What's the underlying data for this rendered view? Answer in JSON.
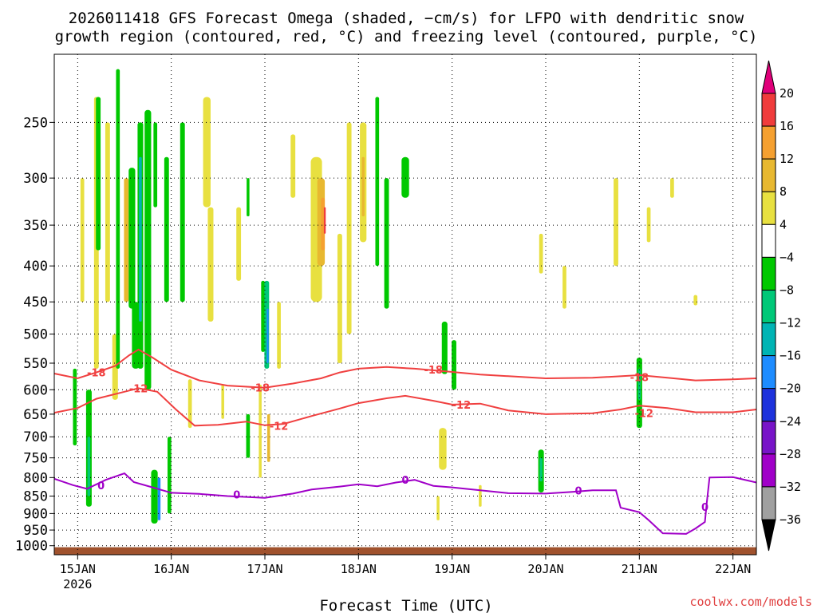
{
  "chart_data": {
    "type": "heatmap",
    "title": "2026011418 GFS Forecast Omega (shaded, −cm/s) for LFPO with dendritic snow growth region (contoured, red, °C) and freezing level (contoured, purple, °C)",
    "title_lines": [
      "2026011418 GFS Forecast Omega (shaded, −cm/s) for LFPO with dendritic snow",
      "growth region (contoured, red, °C) and freezing level (contoured, purple, °C)"
    ],
    "xlabel": "Forecast Time (UTC)",
    "ylabel": "",
    "credit": "coolwx.com/models",
    "x_range_days": [
      14.75,
      22.25
    ],
    "x_ticks": [
      {
        "day": 15,
        "label": "15JAN",
        "sub": "2026"
      },
      {
        "day": 16,
        "label": "16JAN",
        "sub": ""
      },
      {
        "day": 17,
        "label": "17JAN",
        "sub": ""
      },
      {
        "day": 18,
        "label": "18JAN",
        "sub": ""
      },
      {
        "day": 19,
        "label": "19JAN",
        "sub": ""
      },
      {
        "day": 20,
        "label": "20JAN",
        "sub": ""
      },
      {
        "day": 21,
        "label": "21JAN",
        "sub": ""
      },
      {
        "day": 22,
        "label": "22JAN",
        "sub": ""
      }
    ],
    "y_axis": "pressure (hPa), inverted log",
    "y_range": [
      200,
      1030
    ],
    "y_ticks": [
      {
        "p": 250,
        "label": "250"
      },
      {
        "p": 300,
        "label": "300"
      },
      {
        "p": 350,
        "label": "350"
      },
      {
        "p": 400,
        "label": "400"
      },
      {
        "p": 450,
        "label": "450"
      },
      {
        "p": 500,
        "label": "500"
      },
      {
        "p": 550,
        "label": "550"
      },
      {
        "p": 600,
        "label": "600"
      },
      {
        "p": 650,
        "label": "650"
      },
      {
        "p": 700,
        "label": "700"
      },
      {
        "p": 750,
        "label": "750"
      },
      {
        "p": 800,
        "label": "800"
      },
      {
        "p": 850,
        "label": "850"
      },
      {
        "p": 900,
        "label": "900"
      },
      {
        "p": 950,
        "label": "950"
      },
      {
        "p": 1000,
        "label": "1000"
      }
    ],
    "grid": true,
    "ground_color": "#a0522d",
    "ground_top_hpa": 1005,
    "colorbar": {
      "labels": [
        "20",
        "16",
        "12",
        "8",
        "4",
        "−4",
        "−8",
        "−12",
        "−16",
        "−20",
        "−24",
        "−28",
        "−32",
        "−36"
      ],
      "top_arrow_color": "#e0007a",
      "bottom_arrow_color": "#000000",
      "bands": [
        {
          "from": 16,
          "to": 20,
          "color": "#f03c3c"
        },
        {
          "from": 12,
          "to": 16,
          "color": "#f5a030"
        },
        {
          "from": 8,
          "to": 12,
          "color": "#e8b830"
        },
        {
          "from": 4,
          "to": 8,
          "color": "#e8e040"
        },
        {
          "from": -4,
          "to": 4,
          "color": "#ffffff"
        },
        {
          "from": -8,
          "to": -4,
          "color": "#00c800"
        },
        {
          "from": -12,
          "to": -8,
          "color": "#00c878"
        },
        {
          "from": -16,
          "to": -12,
          "color": "#00b4b4"
        },
        {
          "from": -20,
          "to": -16,
          "color": "#1e8cff"
        },
        {
          "from": -24,
          "to": -20,
          "color": "#1e32dc"
        },
        {
          "from": -28,
          "to": -24,
          "color": "#7814c8"
        },
        {
          "from": -32,
          "to": -28,
          "color": "#a000c8"
        },
        {
          "from": -36,
          "to": -32,
          "color": "#a0a0a0"
        }
      ]
    },
    "contours": [
      {
        "label": "-18",
        "color": "#f04040",
        "points": [
          [
            14.75,
            569
          ],
          [
            15.0,
            578
          ],
          [
            15.2,
            567
          ],
          [
            15.4,
            555
          ],
          [
            15.55,
            536
          ],
          [
            15.65,
            526
          ],
          [
            15.8,
            540
          ],
          [
            16.0,
            562
          ],
          [
            16.3,
            582
          ],
          [
            16.6,
            592
          ],
          [
            17.0,
            596
          ],
          [
            17.3,
            588
          ],
          [
            17.6,
            578
          ],
          [
            17.8,
            567
          ],
          [
            18.0,
            560
          ],
          [
            18.3,
            557
          ],
          [
            18.6,
            560
          ],
          [
            19.0,
            566
          ],
          [
            19.3,
            571
          ],
          [
            19.6,
            574
          ],
          [
            20.0,
            578
          ],
          [
            20.5,
            577
          ],
          [
            21.0,
            572
          ],
          [
            21.3,
            577
          ],
          [
            21.6,
            582
          ],
          [
            22.0,
            580
          ],
          [
            22.25,
            578
          ]
        ],
        "label_at": [
          [
            15.2,
            567
          ],
          [
            16.95,
            596
          ],
          [
            18.8,
            562
          ],
          [
            21.0,
            576
          ]
        ]
      },
      {
        "label": "-12",
        "color": "#f04040",
        "points": [
          [
            14.75,
            647
          ],
          [
            15.0,
            637
          ],
          [
            15.2,
            618
          ],
          [
            15.5,
            604
          ],
          [
            15.65,
            597
          ],
          [
            15.85,
            604
          ],
          [
            16.05,
            640
          ],
          [
            16.25,
            675
          ],
          [
            16.5,
            673
          ],
          [
            16.8,
            666
          ],
          [
            17.0,
            674
          ],
          [
            17.2,
            671
          ],
          [
            17.5,
            654
          ],
          [
            17.8,
            638
          ],
          [
            18.0,
            627
          ],
          [
            18.3,
            617
          ],
          [
            18.5,
            612
          ],
          [
            18.8,
            622
          ],
          [
            19.0,
            630
          ],
          [
            19.3,
            628
          ],
          [
            19.6,
            642
          ],
          [
            20.0,
            650
          ],
          [
            20.5,
            648
          ],
          [
            20.8,
            640
          ],
          [
            21.0,
            632
          ],
          [
            21.3,
            637
          ],
          [
            21.6,
            646
          ],
          [
            22.0,
            646
          ],
          [
            22.25,
            640
          ]
        ],
        "label_at": [
          [
            15.65,
            597
          ],
          [
            17.15,
            675
          ],
          [
            19.1,
            630
          ],
          [
            21.05,
            648
          ]
        ]
      },
      {
        "label": "0",
        "color": "#a000c8",
        "points": [
          [
            14.75,
            803
          ],
          [
            14.95,
            820
          ],
          [
            15.1,
            830
          ],
          [
            15.3,
            806
          ],
          [
            15.5,
            789
          ],
          [
            15.6,
            812
          ],
          [
            15.8,
            826
          ],
          [
            16.0,
            841
          ],
          [
            16.3,
            844
          ],
          [
            16.6,
            850
          ],
          [
            17.0,
            855
          ],
          [
            17.3,
            843
          ],
          [
            17.5,
            832
          ],
          [
            17.8,
            824
          ],
          [
            18.0,
            818
          ],
          [
            18.2,
            823
          ],
          [
            18.4,
            813
          ],
          [
            18.6,
            806
          ],
          [
            18.8,
            822
          ],
          [
            19.0,
            826
          ],
          [
            19.3,
            834
          ],
          [
            19.6,
            842
          ],
          [
            20.0,
            843
          ],
          [
            20.3,
            838
          ],
          [
            20.5,
            834
          ],
          [
            20.75,
            834
          ],
          [
            20.8,
            883
          ],
          [
            21.0,
            896
          ],
          [
            21.1,
            920
          ],
          [
            21.25,
            960
          ],
          [
            21.5,
            962
          ],
          [
            21.6,
            945
          ],
          [
            21.7,
            925
          ],
          [
            21.72,
            870
          ],
          [
            21.75,
            800
          ],
          [
            22.0,
            799
          ],
          [
            22.25,
            813
          ]
        ],
        "label_at": [
          [
            15.25,
            820
          ],
          [
            16.7,
            846
          ],
          [
            18.5,
            806
          ],
          [
            20.35,
            835
          ],
          [
            21.7,
            880
          ]
        ]
      }
    ],
    "omega_cells": [
      {
        "t": 14.97,
        "p1": 560,
        "p2": 720,
        "w": 0.04,
        "color": "#00c800"
      },
      {
        "t": 15.05,
        "p1": 300,
        "p2": 450,
        "w": 0.04,
        "color": "#e8e040"
      },
      {
        "t": 15.12,
        "p1": 600,
        "p2": 880,
        "w": 0.06,
        "color": "#00c800"
      },
      {
        "t": 15.12,
        "p1": 700,
        "p2": 850,
        "w": 0.03,
        "color": "#00c878"
      },
      {
        "t": 15.2,
        "p1": 230,
        "p2": 560,
        "w": 0.05,
        "color": "#e8e040"
      },
      {
        "t": 15.22,
        "p1": 230,
        "p2": 380,
        "w": 0.05,
        "color": "#00c800"
      },
      {
        "t": 15.32,
        "p1": 250,
        "p2": 450,
        "w": 0.05,
        "color": "#e8e040"
      },
      {
        "t": 15.4,
        "p1": 500,
        "p2": 620,
        "w": 0.06,
        "color": "#e8e040"
      },
      {
        "t": 15.43,
        "p1": 210,
        "p2": 560,
        "w": 0.04,
        "color": "#00c800"
      },
      {
        "t": 15.52,
        "p1": 300,
        "p2": 450,
        "w": 0.05,
        "color": "#e8b830"
      },
      {
        "t": 15.58,
        "p1": 290,
        "p2": 460,
        "w": 0.07,
        "color": "#00c800"
      },
      {
        "t": 15.62,
        "p1": 450,
        "p2": 560,
        "w": 0.08,
        "color": "#00c800"
      },
      {
        "t": 15.67,
        "p1": 250,
        "p2": 560,
        "w": 0.06,
        "color": "#00c800"
      },
      {
        "t": 15.67,
        "p1": 280,
        "p2": 480,
        "w": 0.03,
        "color": "#00b4b4"
      },
      {
        "t": 15.75,
        "p1": 240,
        "p2": 600,
        "w": 0.07,
        "color": "#00c800"
      },
      {
        "t": 15.83,
        "p1": 250,
        "p2": 330,
        "w": 0.04,
        "color": "#00c800"
      },
      {
        "t": 15.82,
        "p1": 780,
        "p2": 930,
        "w": 0.07,
        "color": "#00c800"
      },
      {
        "t": 15.87,
        "p1": 800,
        "p2": 920,
        "w": 0.03,
        "color": "#1e8cff"
      },
      {
        "t": 15.95,
        "p1": 280,
        "p2": 450,
        "w": 0.05,
        "color": "#00c800"
      },
      {
        "t": 15.98,
        "p1": 700,
        "p2": 900,
        "w": 0.04,
        "color": "#00c800"
      },
      {
        "t": 16.12,
        "p1": 250,
        "p2": 450,
        "w": 0.05,
        "color": "#00c800"
      },
      {
        "t": 16.2,
        "p1": 580,
        "p2": 680,
        "w": 0.04,
        "color": "#e8e040"
      },
      {
        "t": 16.38,
        "p1": 230,
        "p2": 330,
        "w": 0.08,
        "color": "#e8e040"
      },
      {
        "t": 16.42,
        "p1": 330,
        "p2": 480,
        "w": 0.06,
        "color": "#e8e040"
      },
      {
        "t": 16.55,
        "p1": 590,
        "p2": 660,
        "w": 0.03,
        "color": "#e8e040"
      },
      {
        "t": 16.72,
        "p1": 330,
        "p2": 420,
        "w": 0.05,
        "color": "#e8e040"
      },
      {
        "t": 16.82,
        "p1": 300,
        "p2": 340,
        "w": 0.03,
        "color": "#00c800"
      },
      {
        "t": 16.82,
        "p1": 650,
        "p2": 750,
        "w": 0.04,
        "color": "#00c800"
      },
      {
        "t": 16.95,
        "p1": 590,
        "p2": 800,
        "w": 0.03,
        "color": "#e8e040"
      },
      {
        "t": 16.98,
        "p1": 420,
        "p2": 530,
        "w": 0.04,
        "color": "#00c800"
      },
      {
        "t": 17.02,
        "p1": 420,
        "p2": 560,
        "w": 0.05,
        "color": "#00c878"
      },
      {
        "t": 17.03,
        "p1": 460,
        "p2": 550,
        "w": 0.02,
        "color": "#1e8cff"
      },
      {
        "t": 17.04,
        "p1": 650,
        "p2": 760,
        "w": 0.03,
        "color": "#e8b830"
      },
      {
        "t": 17.15,
        "p1": 450,
        "p2": 560,
        "w": 0.04,
        "color": "#e8e040"
      },
      {
        "t": 17.3,
        "p1": 260,
        "p2": 320,
        "w": 0.05,
        "color": "#e8e040"
      },
      {
        "t": 17.55,
        "p1": 280,
        "p2": 450,
        "w": 0.12,
        "color": "#e8e040"
      },
      {
        "t": 17.6,
        "p1": 300,
        "p2": 400,
        "w": 0.08,
        "color": "#e8b830"
      },
      {
        "t": 17.62,
        "p1": 320,
        "p2": 380,
        "w": 0.04,
        "color": "#f5a030"
      },
      {
        "t": 17.64,
        "p1": 330,
        "p2": 360,
        "w": 0.02,
        "color": "#f03c3c"
      },
      {
        "t": 17.8,
        "p1": 360,
        "p2": 550,
        "w": 0.05,
        "color": "#e8e040"
      },
      {
        "t": 17.9,
        "p1": 250,
        "p2": 500,
        "w": 0.05,
        "color": "#e8e040"
      },
      {
        "t": 18.05,
        "p1": 250,
        "p2": 370,
        "w": 0.07,
        "color": "#e8e040"
      },
      {
        "t": 18.05,
        "p1": 280,
        "p2": 340,
        "w": 0.03,
        "color": "#e8b830"
      },
      {
        "t": 18.2,
        "p1": 230,
        "p2": 400,
        "w": 0.04,
        "color": "#00c800"
      },
      {
        "t": 18.3,
        "p1": 300,
        "p2": 460,
        "w": 0.05,
        "color": "#00c800"
      },
      {
        "t": 18.5,
        "p1": 280,
        "p2": 320,
        "w": 0.08,
        "color": "#00c800"
      },
      {
        "t": 18.92,
        "p1": 480,
        "p2": 570,
        "w": 0.06,
        "color": "#00c800"
      },
      {
        "t": 19.02,
        "p1": 510,
        "p2": 600,
        "w": 0.05,
        "color": "#00c800"
      },
      {
        "t": 18.9,
        "p1": 680,
        "p2": 780,
        "w": 0.08,
        "color": "#e8e040"
      },
      {
        "t": 18.85,
        "p1": 850,
        "p2": 920,
        "w": 0.03,
        "color": "#e8e040"
      },
      {
        "t": 19.3,
        "p1": 820,
        "p2": 880,
        "w": 0.03,
        "color": "#e8e040"
      },
      {
        "t": 19.95,
        "p1": 730,
        "p2": 840,
        "w": 0.06,
        "color": "#00c800"
      },
      {
        "t": 19.95,
        "p1": 750,
        "p2": 810,
        "w": 0.03,
        "color": "#00c878"
      },
      {
        "t": 19.95,
        "p1": 360,
        "p2": 410,
        "w": 0.04,
        "color": "#e8e040"
      },
      {
        "t": 20.2,
        "p1": 400,
        "p2": 460,
        "w": 0.04,
        "color": "#e8e040"
      },
      {
        "t": 20.75,
        "p1": 300,
        "p2": 400,
        "w": 0.05,
        "color": "#e8e040"
      },
      {
        "t": 21.0,
        "p1": 540,
        "p2": 680,
        "w": 0.06,
        "color": "#00c800"
      },
      {
        "t": 21.0,
        "p1": 560,
        "p2": 620,
        "w": 0.03,
        "color": "#00c878"
      },
      {
        "t": 21.1,
        "p1": 330,
        "p2": 370,
        "w": 0.04,
        "color": "#e8e040"
      },
      {
        "t": 21.35,
        "p1": 300,
        "p2": 320,
        "w": 0.04,
        "color": "#e8e040"
      },
      {
        "t": 21.6,
        "p1": 440,
        "p2": 455,
        "w": 0.04,
        "color": "#e8e040"
      }
    ]
  }
}
